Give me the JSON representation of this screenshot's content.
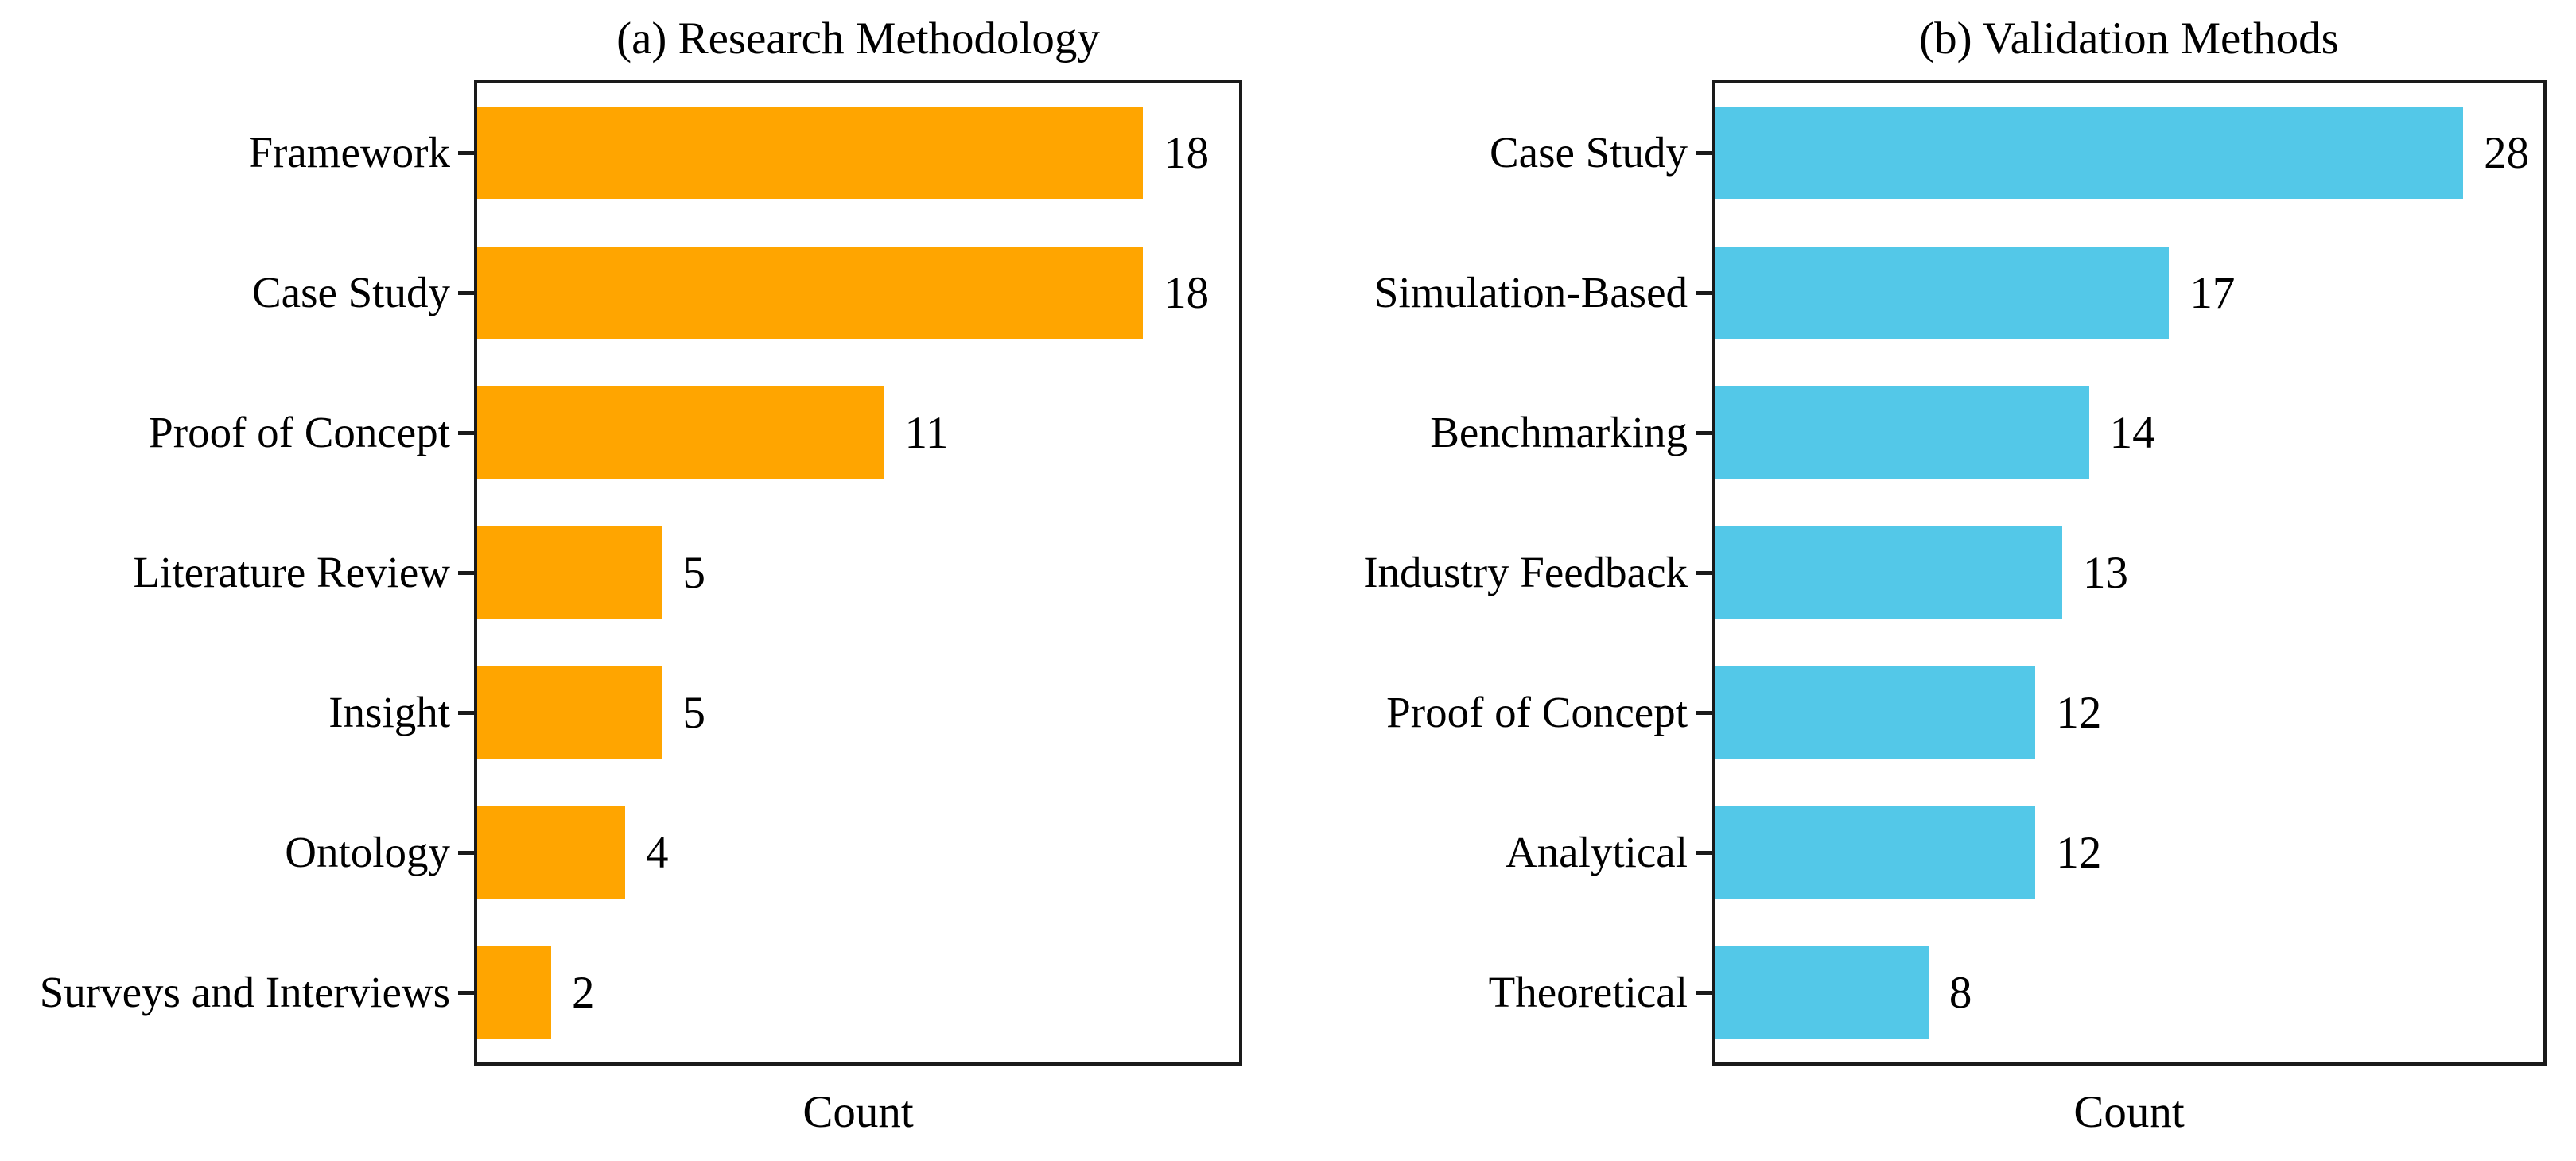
{
  "figure": {
    "background": "#ffffff",
    "spine_color": "#1a1a1a",
    "text_color": "#000000"
  },
  "chart_data": [
    {
      "type": "bar",
      "orientation": "horizontal",
      "title": "(a) Research Methodology",
      "categories": [
        "Framework",
        "Case Study",
        "Proof of Concept",
        "Literature Review",
        "Insight",
        "Ontology",
        "Surveys and Interviews"
      ],
      "values": [
        18,
        18,
        11,
        5,
        5,
        4,
        2
      ],
      "value_labels": [
        "18",
        "18",
        "11",
        "5",
        "5",
        "4",
        "2"
      ],
      "xlabel": "Count",
      "bar_color": "#FFA500",
      "xlim": [
        0,
        20.6
      ],
      "grid": false,
      "legend": "none"
    },
    {
      "type": "bar",
      "orientation": "horizontal",
      "title": "(b) Validation Methods",
      "categories": [
        "Case Study",
        "Simulation-Based",
        "Benchmarking",
        "Industry Feedback",
        "Proof of Concept",
        "Analytical",
        "Theoretical"
      ],
      "values": [
        28,
        17,
        14,
        13,
        12,
        12,
        8
      ],
      "value_labels": [
        "28",
        "17",
        "14",
        "13",
        "12",
        "12",
        "8"
      ],
      "xlabel": "Count",
      "bar_color": "#53C8E8",
      "xlim": [
        0,
        31
      ],
      "grid": false,
      "legend": "none"
    }
  ]
}
